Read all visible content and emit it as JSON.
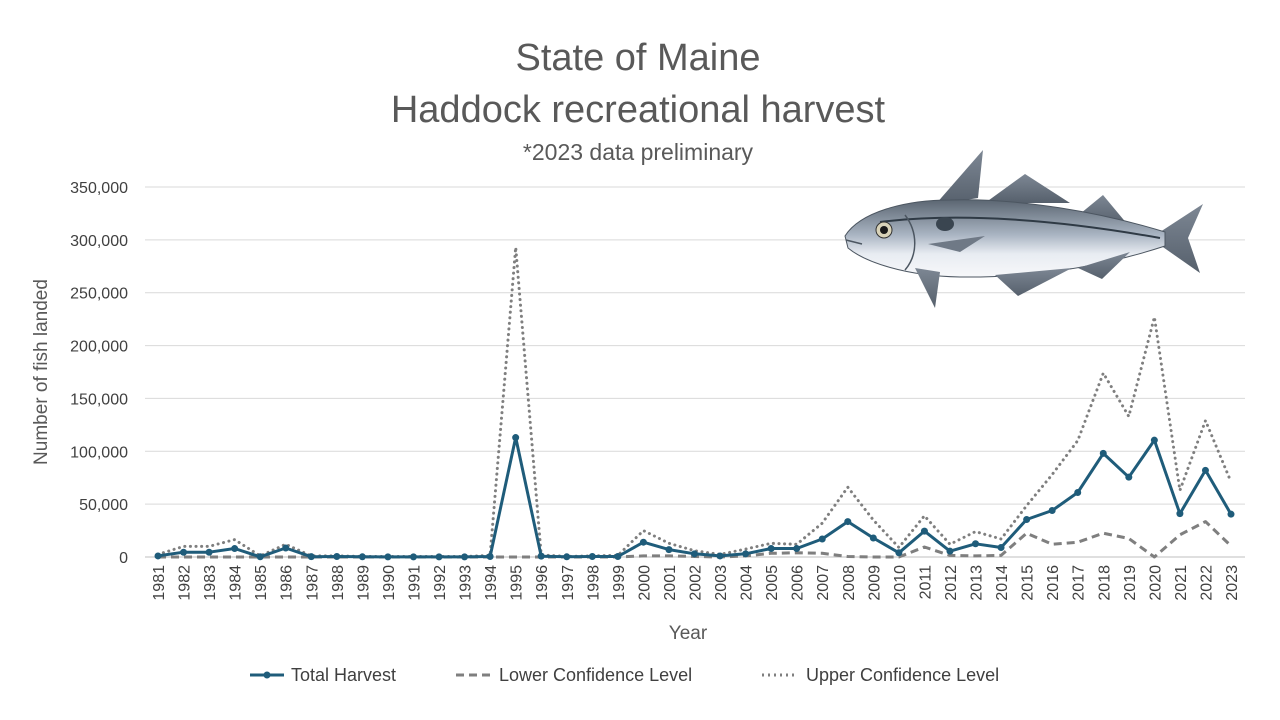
{
  "chart_data": {
    "type": "line",
    "title": "State of Maine",
    "title_line2": "Haddock recreational harvest",
    "subtitle": "*2023 data preliminary",
    "xlabel": "Year",
    "ylabel": "Number of fish landed",
    "ylim": [
      0,
      350000
    ],
    "yticks": [
      "0",
      "50,000",
      "100,000",
      "150,000",
      "200,000",
      "250,000",
      "300,000",
      "350,000"
    ],
    "ytick_values": [
      0,
      50000,
      100000,
      150000,
      200000,
      250000,
      300000,
      350000
    ],
    "grid": true,
    "legend_position": "bottom",
    "categories": [
      "1981",
      "1982",
      "1983",
      "1984",
      "1985",
      "1986",
      "1987",
      "1988",
      "1989",
      "1990",
      "1991",
      "1992",
      "1993",
      "1994",
      "1995",
      "1996",
      "1997",
      "1998",
      "1999",
      "2000",
      "2001",
      "2002",
      "2003",
      "2004",
      "2005",
      "2006",
      "2007",
      "2008",
      "2009",
      "2010",
      "2011",
      "2012",
      "2013",
      "2014",
      "2015",
      "2016",
      "2017",
      "2018",
      "2019",
      "2020",
      "2021",
      "2022",
      "2023"
    ],
    "series": [
      {
        "name": "Total Harvest",
        "color": "#1f5c7a",
        "style": "solid-markers",
        "values": [
          1000,
          4500,
          4500,
          8000,
          200,
          8500,
          300,
          500,
          200,
          100,
          100,
          100,
          100,
          500,
          113000,
          800,
          200,
          500,
          500,
          14000,
          7000,
          3000,
          1000,
          3000,
          8000,
          8000,
          17000,
          33500,
          18000,
          4000,
          24500,
          5500,
          12500,
          9000,
          35500,
          44000,
          61000,
          98000,
          75500,
          110500,
          41000,
          82000,
          40500
        ]
      },
      {
        "name": "Lower Confidence Level",
        "color": "#7f7f7f",
        "style": "dashed",
        "values": [
          0,
          0,
          0,
          0,
          0,
          0,
          0,
          0,
          0,
          0,
          0,
          0,
          0,
          0,
          0,
          0,
          0,
          0,
          0,
          1000,
          1000,
          500,
          0,
          1000,
          3500,
          4000,
          3500,
          500,
          0,
          0,
          9500,
          1500,
          1000,
          1500,
          22500,
          12000,
          14000,
          22500,
          17500,
          0,
          21000,
          33500,
          10500
        ]
      },
      {
        "name": "Upper Confidence Level",
        "color": "#7f7f7f",
        "style": "dotted",
        "values": [
          2500,
          10000,
          10000,
          16500,
          1000,
          12000,
          1000,
          1000,
          500,
          500,
          500,
          500,
          500,
          1500,
          293000,
          2000,
          500,
          1000,
          1500,
          25000,
          13000,
          6000,
          2500,
          7500,
          13000,
          12000,
          32000,
          66000,
          35000,
          9000,
          39000,
          12000,
          24000,
          17000,
          48500,
          78000,
          110000,
          174000,
          133000,
          227000,
          63000,
          129000,
          71000
        ]
      }
    ]
  },
  "illustration": {
    "icon": "haddock-fish-illustration"
  }
}
